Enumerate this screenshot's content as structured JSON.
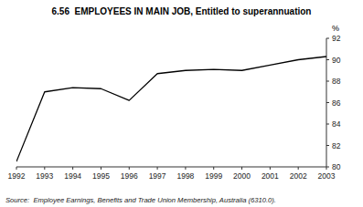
{
  "chart_data": {
    "type": "line",
    "title": "6.56  EMPLOYEES IN MAIN JOB, Entitled to superannuation",
    "ylabel": "%",
    "annotations": [
      "Source:  Employee Earnings, Benefits and Trade Union Membership, Australia (6310.0)."
    ],
    "x": [
      1992,
      1993,
      1994,
      1995,
      1996,
      1997,
      1998,
      1999,
      2000,
      2001,
      2002,
      2003
    ],
    "values": [
      80.5,
      87.0,
      87.4,
      87.3,
      86.2,
      88.7,
      89.0,
      89.1,
      89.0,
      89.5,
      90.0,
      90.3
    ],
    "color": "#000000",
    "xlim": [
      1992,
      2003
    ],
    "xticks": [
      1992,
      1993,
      1994,
      1995,
      1996,
      1997,
      1998,
      1999,
      2000,
      2001,
      2002,
      2003
    ],
    "ylim": [
      80,
      92
    ],
    "yticks": [
      80,
      82,
      84,
      86,
      88,
      90,
      92
    ],
    "grid": false
  }
}
